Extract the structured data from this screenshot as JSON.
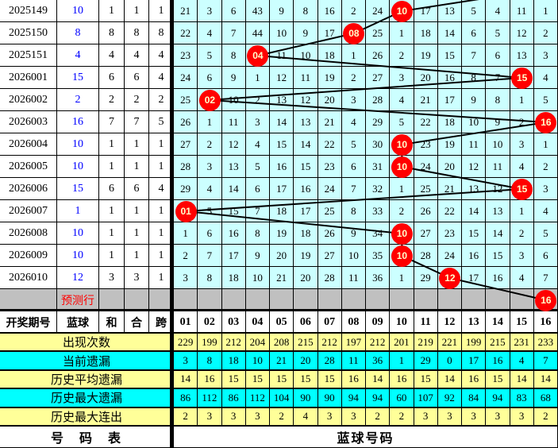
{
  "colors": {
    "grid_bg": "#CCFFFF",
    "highlight_red": "#FF0000",
    "stat_yellow": "#FFFF99",
    "stat_cyan": "#00FFFF",
    "prediction_gray": "#C0C0C0",
    "blue_ball_text": "#0000FF"
  },
  "chart_data": {
    "type": "table",
    "left_header": [
      "开奖期号",
      "蓝球",
      "和",
      "合",
      "跨"
    ],
    "columns": [
      "01",
      "02",
      "03",
      "04",
      "05",
      "06",
      "07",
      "08",
      "09",
      "10",
      "11",
      "12",
      "13",
      "14",
      "15",
      "16"
    ],
    "rows": [
      {
        "period": "2025149",
        "blue": "10",
        "he": "1",
        "hezhi": "1",
        "kua": "1",
        "circle": {
          "col": 10,
          "label": "10"
        },
        "cells": [
          "21",
          "3",
          "6",
          "43",
          "9",
          "8",
          "16",
          "2",
          "24",
          "",
          "17",
          "13",
          "5",
          "4",
          "11",
          "1"
        ]
      },
      {
        "period": "2025150",
        "blue": "8",
        "he": "8",
        "hezhi": "8",
        "kua": "8",
        "circle": {
          "col": 8,
          "label": "08"
        },
        "cells": [
          "22",
          "4",
          "7",
          "44",
          "10",
          "9",
          "17",
          "",
          "25",
          "1",
          "18",
          "14",
          "6",
          "5",
          "12",
          "2"
        ]
      },
      {
        "period": "2025151",
        "blue": "4",
        "he": "4",
        "hezhi": "4",
        "kua": "4",
        "circle": {
          "col": 4,
          "label": "04"
        },
        "cells": [
          "23",
          "5",
          "8",
          "",
          "11",
          "10",
          "18",
          "1",
          "26",
          "2",
          "19",
          "15",
          "7",
          "6",
          "13",
          "3"
        ]
      },
      {
        "period": "2026001",
        "blue": "15",
        "he": "6",
        "hezhi": "6",
        "kua": "4",
        "circle": {
          "col": 15,
          "label": "15"
        },
        "cells": [
          "24",
          "6",
          "9",
          "1",
          "12",
          "11",
          "19",
          "2",
          "27",
          "3",
          "20",
          "16",
          "8",
          "7",
          "",
          "4"
        ]
      },
      {
        "period": "2026002",
        "blue": "2",
        "he": "2",
        "hezhi": "2",
        "kua": "2",
        "circle": {
          "col": 2,
          "label": "02"
        },
        "cells": [
          "25",
          "",
          "10",
          "2",
          "13",
          "12",
          "20",
          "3",
          "28",
          "4",
          "21",
          "17",
          "9",
          "8",
          "1",
          "5"
        ]
      },
      {
        "period": "2026003",
        "blue": "16",
        "he": "7",
        "hezhi": "7",
        "kua": "5",
        "circle": {
          "col": 16,
          "label": "16"
        },
        "cells": [
          "26",
          "1",
          "11",
          "3",
          "14",
          "13",
          "21",
          "4",
          "29",
          "5",
          "22",
          "18",
          "10",
          "9",
          "2",
          ""
        ]
      },
      {
        "period": "2026004",
        "blue": "10",
        "he": "1",
        "hezhi": "1",
        "kua": "1",
        "circle": {
          "col": 10,
          "label": "10"
        },
        "cells": [
          "27",
          "2",
          "12",
          "4",
          "15",
          "14",
          "22",
          "5",
          "30",
          "",
          "23",
          "19",
          "11",
          "10",
          "3",
          "1"
        ]
      },
      {
        "period": "2026005",
        "blue": "10",
        "he": "1",
        "hezhi": "1",
        "kua": "1",
        "circle": {
          "col": 10,
          "label": "10"
        },
        "cells": [
          "28",
          "3",
          "13",
          "5",
          "16",
          "15",
          "23",
          "6",
          "31",
          "",
          "24",
          "20",
          "12",
          "11",
          "4",
          "2"
        ]
      },
      {
        "period": "2026006",
        "blue": "15",
        "he": "6",
        "hezhi": "6",
        "kua": "4",
        "circle": {
          "col": 15,
          "label": "15"
        },
        "cells": [
          "29",
          "4",
          "14",
          "6",
          "17",
          "16",
          "24",
          "7",
          "32",
          "1",
          "25",
          "21",
          "13",
          "12",
          "",
          "3"
        ]
      },
      {
        "period": "2026007",
        "blue": "1",
        "he": "1",
        "hezhi": "1",
        "kua": "1",
        "circle": {
          "col": 1,
          "label": "01"
        },
        "cells": [
          "",
          "5",
          "15",
          "7",
          "18",
          "17",
          "25",
          "8",
          "33",
          "2",
          "26",
          "22",
          "14",
          "13",
          "1",
          "4"
        ]
      },
      {
        "period": "2026008",
        "blue": "10",
        "he": "1",
        "hezhi": "1",
        "kua": "1",
        "circle": {
          "col": 10,
          "label": "10"
        },
        "cells": [
          "1",
          "6",
          "16",
          "8",
          "19",
          "18",
          "26",
          "9",
          "34",
          "",
          "27",
          "23",
          "15",
          "14",
          "2",
          "5"
        ]
      },
      {
        "period": "2026009",
        "blue": "10",
        "he": "1",
        "hezhi": "1",
        "kua": "1",
        "circle": {
          "col": 10,
          "label": "10"
        },
        "cells": [
          "2",
          "7",
          "17",
          "9",
          "20",
          "19",
          "27",
          "10",
          "35",
          "",
          "28",
          "24",
          "16",
          "15",
          "3",
          "6"
        ]
      },
      {
        "period": "2026010",
        "blue": "12",
        "he": "3",
        "hezhi": "3",
        "kua": "1",
        "circle": {
          "col": 12,
          "label": "12"
        },
        "cells": [
          "3",
          "8",
          "18",
          "10",
          "21",
          "20",
          "28",
          "11",
          "36",
          "1",
          "29",
          "",
          "17",
          "16",
          "4",
          "7"
        ]
      }
    ],
    "prediction": {
      "label": "预测行",
      "circle": {
        "col": 16,
        "label": "16"
      }
    },
    "stats": [
      {
        "label": "出现次数",
        "values": [
          229,
          199,
          212,
          204,
          208,
          215,
          212,
          197,
          212,
          201,
          219,
          221,
          199,
          215,
          231,
          233
        ]
      },
      {
        "label": "当前遗漏",
        "values": [
          3,
          8,
          18,
          10,
          21,
          20,
          28,
          11,
          36,
          1,
          29,
          0,
          17,
          16,
          4,
          7
        ]
      },
      {
        "label": "历史平均遗漏",
        "values": [
          14,
          16,
          15,
          15,
          15,
          15,
          15,
          16,
          14,
          16,
          15,
          14,
          16,
          15,
          14,
          14
        ]
      },
      {
        "label": "历史最大遗漏",
        "values": [
          86,
          112,
          86,
          112,
          104,
          90,
          90,
          94,
          94,
          60,
          107,
          92,
          84,
          94,
          83,
          68
        ]
      },
      {
        "label": "历史最大连出",
        "values": [
          2,
          3,
          3,
          3,
          2,
          4,
          3,
          3,
          2,
          2,
          3,
          3,
          3,
          3,
          3,
          2
        ]
      }
    ],
    "footer": {
      "left": "号　码　表",
      "right": "蓝球号码"
    }
  }
}
